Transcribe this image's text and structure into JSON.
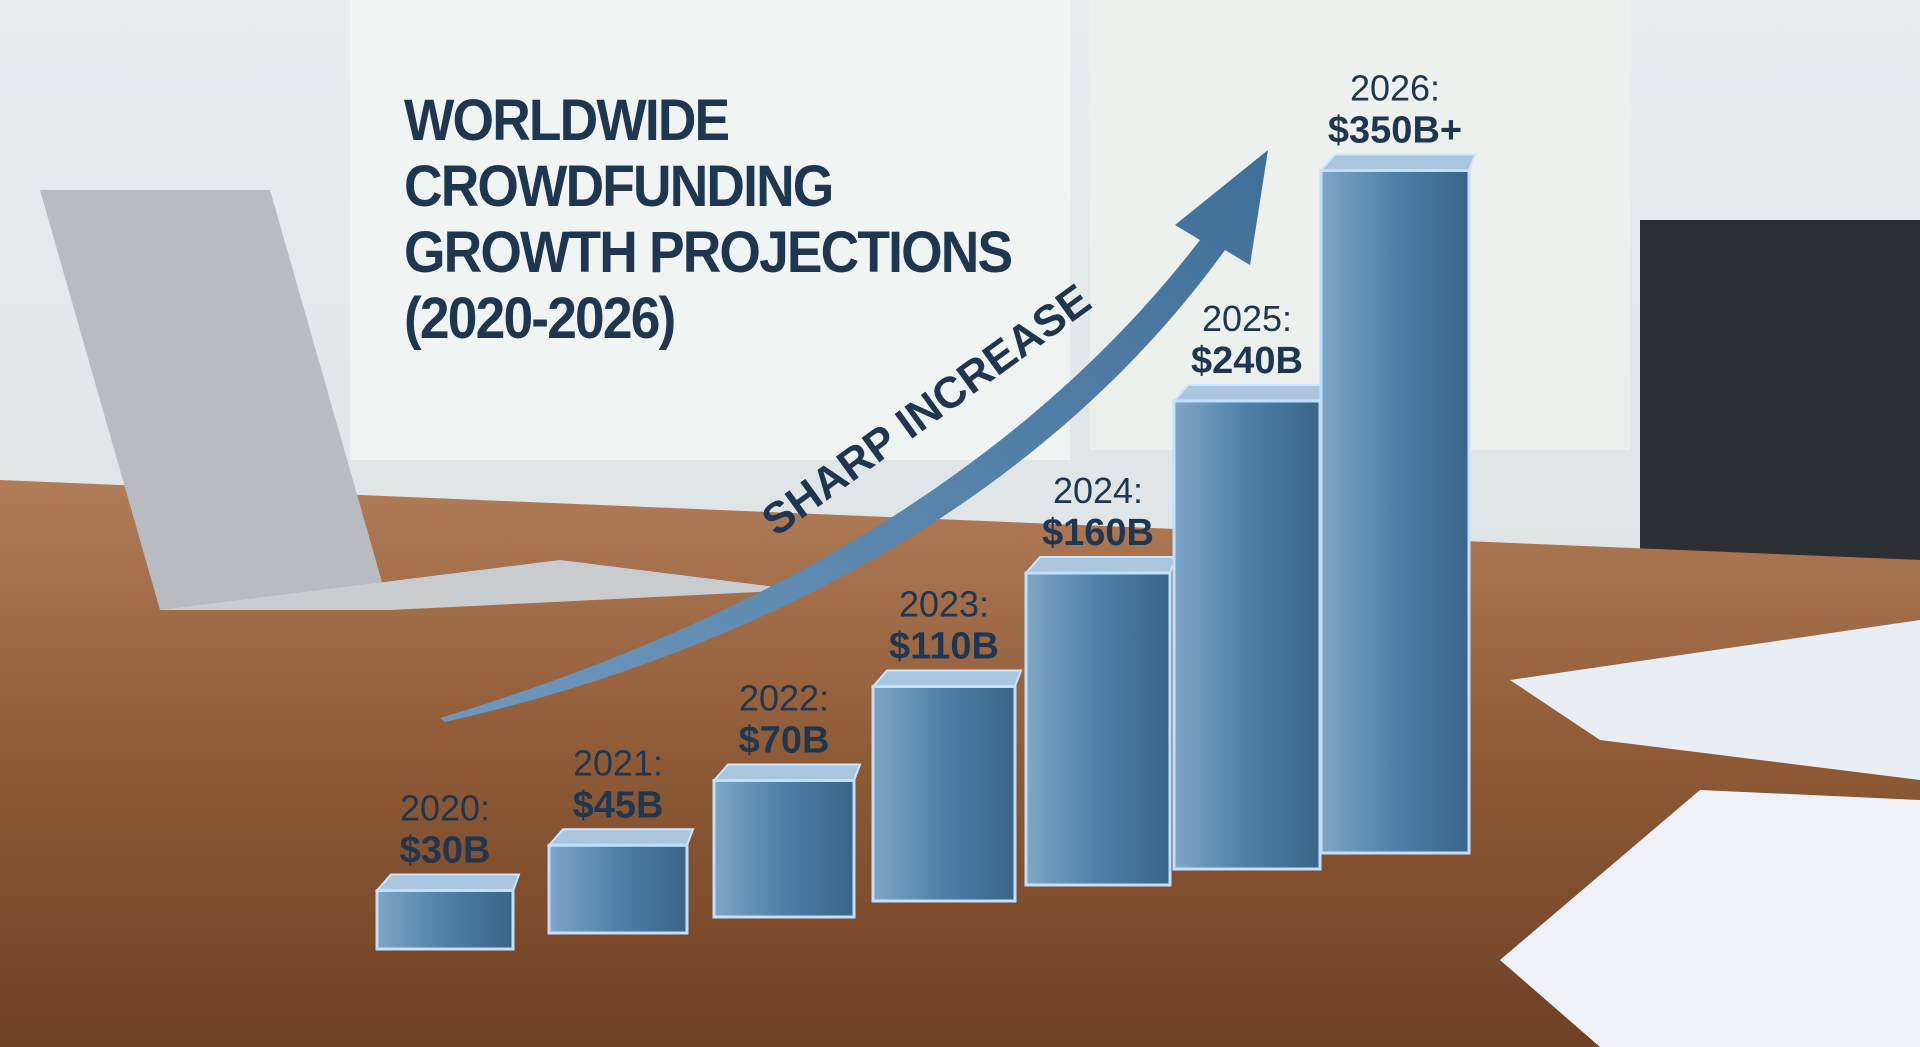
{
  "chart_data": {
    "type": "bar3d",
    "title": "WORLDWIDE CROWDFUNDING GROWTH PROJECTIONS (2020-2026)",
    "annotation": "SHARP INCREASE",
    "categories": [
      "2020:",
      "2021:",
      "2022:",
      "2023:",
      "2024:",
      "2025:",
      "2026:"
    ],
    "values": [
      30,
      45,
      70,
      110,
      160,
      240,
      350
    ],
    "value_labels": [
      "$30B",
      "$45B",
      "$70B",
      "$110B",
      "$160B",
      "$240B",
      "$350B+"
    ],
    "color": "#4f7fa8"
  }
}
